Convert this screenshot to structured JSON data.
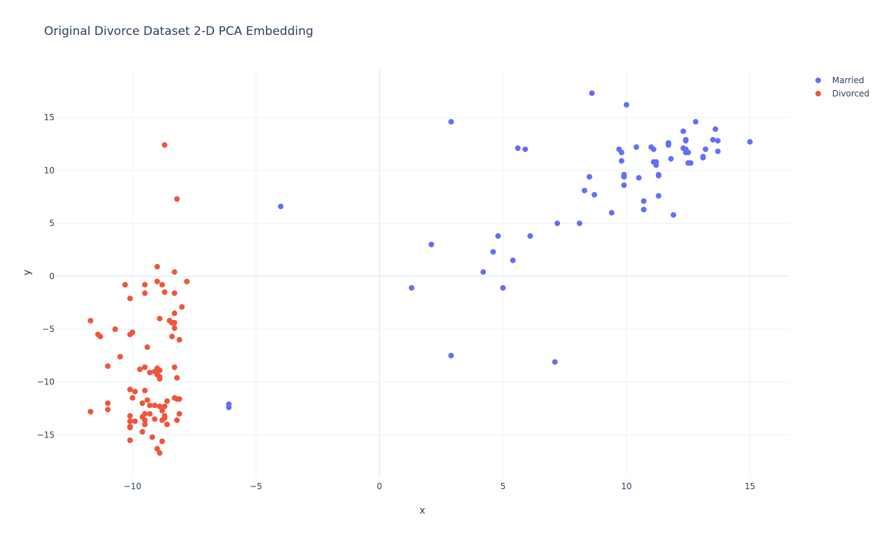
{
  "chart_data": {
    "type": "scatter",
    "title": "Original Divorce Dataset 2-D PCA Embedding",
    "xlabel": "x",
    "ylabel": "y",
    "xlim": [
      -13.1,
      16.6
    ],
    "ylim": [
      -19.0,
      19.5
    ],
    "xticks": [
      -10,
      -5,
      0,
      5,
      10,
      15
    ],
    "xtick_labels": [
      "−10",
      "−5",
      "0",
      "5",
      "10",
      "15"
    ],
    "yticks": [
      -15,
      -10,
      -5,
      0,
      5,
      10,
      15
    ],
    "ytick_labels": [
      "−15",
      "−10",
      "−5",
      "0",
      "5",
      "10",
      "15"
    ],
    "grid": true,
    "legend_position": "top-right",
    "series": [
      {
        "name": "Married",
        "color": "#636efa",
        "points": [
          [
            8.6,
            17.3
          ],
          [
            10.0,
            16.2
          ],
          [
            2.9,
            14.6
          ],
          [
            12.8,
            14.6
          ],
          [
            13.6,
            13.9
          ],
          [
            12.3,
            13.7
          ],
          [
            12.4,
            12.9
          ],
          [
            12.4,
            12.8
          ],
          [
            13.5,
            12.9
          ],
          [
            13.7,
            12.8
          ],
          [
            15.0,
            12.7
          ],
          [
            11.7,
            12.6
          ],
          [
            11.7,
            12.4
          ],
          [
            10.4,
            12.2
          ],
          [
            11.0,
            12.2
          ],
          [
            11.1,
            12.0
          ],
          [
            12.3,
            12.1
          ],
          [
            12.4,
            12.0
          ],
          [
            13.2,
            12.0
          ],
          [
            13.7,
            11.8
          ],
          [
            12.4,
            11.7
          ],
          [
            12.5,
            11.7
          ],
          [
            9.7,
            12.0
          ],
          [
            9.8,
            11.7
          ],
          [
            5.6,
            12.1
          ],
          [
            5.9,
            12.0
          ],
          [
            13.1,
            11.2
          ],
          [
            13.1,
            11.3
          ],
          [
            11.8,
            11.1
          ],
          [
            9.8,
            10.9
          ],
          [
            11.1,
            10.8
          ],
          [
            11.2,
            10.8
          ],
          [
            11.2,
            10.5
          ],
          [
            12.5,
            10.7
          ],
          [
            12.6,
            10.7
          ],
          [
            9.9,
            9.6
          ],
          [
            9.9,
            9.4
          ],
          [
            11.3,
            9.6
          ],
          [
            11.3,
            9.5
          ],
          [
            10.5,
            9.3
          ],
          [
            8.5,
            9.4
          ],
          [
            9.9,
            8.6
          ],
          [
            8.3,
            8.1
          ],
          [
            8.7,
            7.7
          ],
          [
            11.3,
            7.6
          ],
          [
            10.7,
            7.1
          ],
          [
            10.7,
            6.3
          ],
          [
            9.4,
            6.0
          ],
          [
            11.9,
            5.8
          ],
          [
            7.2,
            5.0
          ],
          [
            8.1,
            5.0
          ],
          [
            -4.0,
            6.6
          ],
          [
            6.1,
            3.8
          ],
          [
            4.8,
            3.8
          ],
          [
            2.1,
            3.0
          ],
          [
            4.6,
            2.3
          ],
          [
            5.4,
            1.5
          ],
          [
            4.2,
            0.4
          ],
          [
            1.3,
            -1.1
          ],
          [
            5.0,
            -1.1
          ],
          [
            2.9,
            -7.5
          ],
          [
            7.1,
            -8.1
          ],
          [
            -6.1,
            -12.1
          ],
          [
            -6.1,
            -12.4
          ]
        ]
      },
      {
        "name": "Divorced",
        "color": "#ef553b",
        "points": [
          [
            -8.7,
            12.4
          ],
          [
            -8.2,
            7.3
          ],
          [
            -9.0,
            0.9
          ],
          [
            -8.3,
            0.4
          ],
          [
            -7.8,
            -0.5
          ],
          [
            -9.0,
            -0.5
          ],
          [
            -8.8,
            -0.8
          ],
          [
            -10.3,
            -0.8
          ],
          [
            -9.5,
            -0.8
          ],
          [
            -9.5,
            -1.6
          ],
          [
            -8.7,
            -1.5
          ],
          [
            -8.3,
            -1.6
          ],
          [
            -10.1,
            -2.1
          ],
          [
            -8.0,
            -2.9
          ],
          [
            -8.3,
            -3.5
          ],
          [
            -8.9,
            -4.0
          ],
          [
            -8.5,
            -4.2
          ],
          [
            -8.4,
            -4.4
          ],
          [
            -8.3,
            -4.4
          ],
          [
            -11.7,
            -4.2
          ],
          [
            -8.3,
            -4.9
          ],
          [
            -10.7,
            -5.0
          ],
          [
            -10.0,
            -5.3
          ],
          [
            -10.1,
            -5.5
          ],
          [
            -11.4,
            -5.5
          ],
          [
            -11.3,
            -5.7
          ],
          [
            -8.4,
            -5.7
          ],
          [
            -8.1,
            -6.0
          ],
          [
            -9.4,
            -6.7
          ],
          [
            -10.5,
            -7.6
          ],
          [
            -11.0,
            -8.5
          ],
          [
            -9.5,
            -8.6
          ],
          [
            -8.3,
            -8.6
          ],
          [
            -9.7,
            -8.8
          ],
          [
            -9.0,
            -8.7
          ],
          [
            -8.9,
            -8.9
          ],
          [
            -9.3,
            -9.1
          ],
          [
            -9.1,
            -9.0
          ],
          [
            -9.0,
            -9.3
          ],
          [
            -8.9,
            -9.5
          ],
          [
            -8.2,
            -9.6
          ],
          [
            -8.9,
            -9.7
          ],
          [
            -10.1,
            -10.7
          ],
          [
            -9.9,
            -10.9
          ],
          [
            -9.5,
            -10.8
          ],
          [
            -10.0,
            -11.5
          ],
          [
            -8.3,
            -11.5
          ],
          [
            -8.2,
            -11.6
          ],
          [
            -8.1,
            -11.6
          ],
          [
            -9.4,
            -11.7
          ],
          [
            -8.6,
            -11.8
          ],
          [
            -11.0,
            -12.0
          ],
          [
            -9.6,
            -12.0
          ],
          [
            -9.3,
            -12.2
          ],
          [
            -9.1,
            -12.2
          ],
          [
            -8.9,
            -12.3
          ],
          [
            -8.7,
            -12.3
          ],
          [
            -11.0,
            -12.6
          ],
          [
            -8.8,
            -12.7
          ],
          [
            -11.7,
            -12.8
          ],
          [
            -9.3,
            -13.0
          ],
          [
            -9.5,
            -13.0
          ],
          [
            -8.1,
            -13.0
          ],
          [
            -8.7,
            -13.2
          ],
          [
            -10.1,
            -13.2
          ],
          [
            -9.6,
            -13.3
          ],
          [
            -8.7,
            -13.4
          ],
          [
            -9.5,
            -13.6
          ],
          [
            -9.1,
            -13.5
          ],
          [
            -8.8,
            -13.6
          ],
          [
            -8.2,
            -13.6
          ],
          [
            -10.1,
            -13.7
          ],
          [
            -9.9,
            -13.7
          ],
          [
            -9.5,
            -14.0
          ],
          [
            -8.6,
            -14.0
          ],
          [
            -10.1,
            -14.2
          ],
          [
            -10.1,
            -14.3
          ],
          [
            -9.6,
            -14.7
          ],
          [
            -9.2,
            -15.2
          ],
          [
            -10.1,
            -15.5
          ],
          [
            -8.8,
            -15.6
          ],
          [
            -9.0,
            -16.3
          ],
          [
            -8.9,
            -16.7
          ]
        ]
      }
    ]
  }
}
